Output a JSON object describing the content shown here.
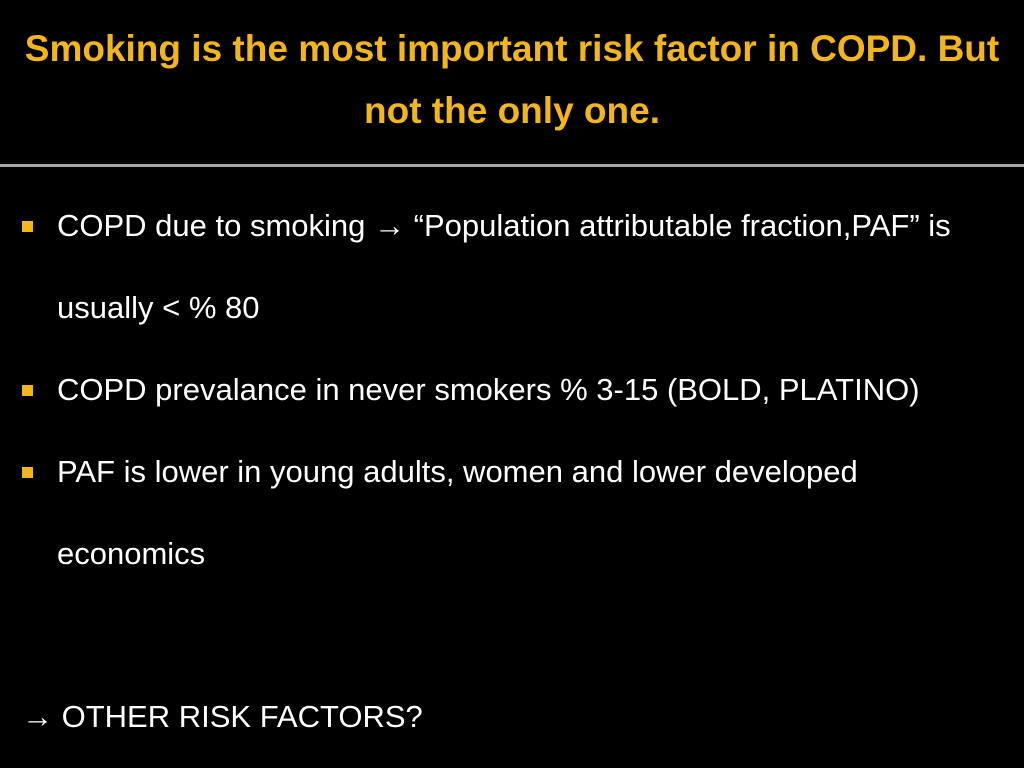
{
  "header": {
    "title": "Smoking is the most important risk factor in COPD. But not the only one."
  },
  "bullets": [
    "COPD due to smoking → “Population attributable fraction,PAF” is usually < % 80",
    "COPD prevalance in never smokers % 3-15 (BOLD, PLATINO)",
    "PAF is lower in young adults, women and lower developed economics"
  ],
  "conclusion": "→ OTHER RISK FACTORS?"
}
